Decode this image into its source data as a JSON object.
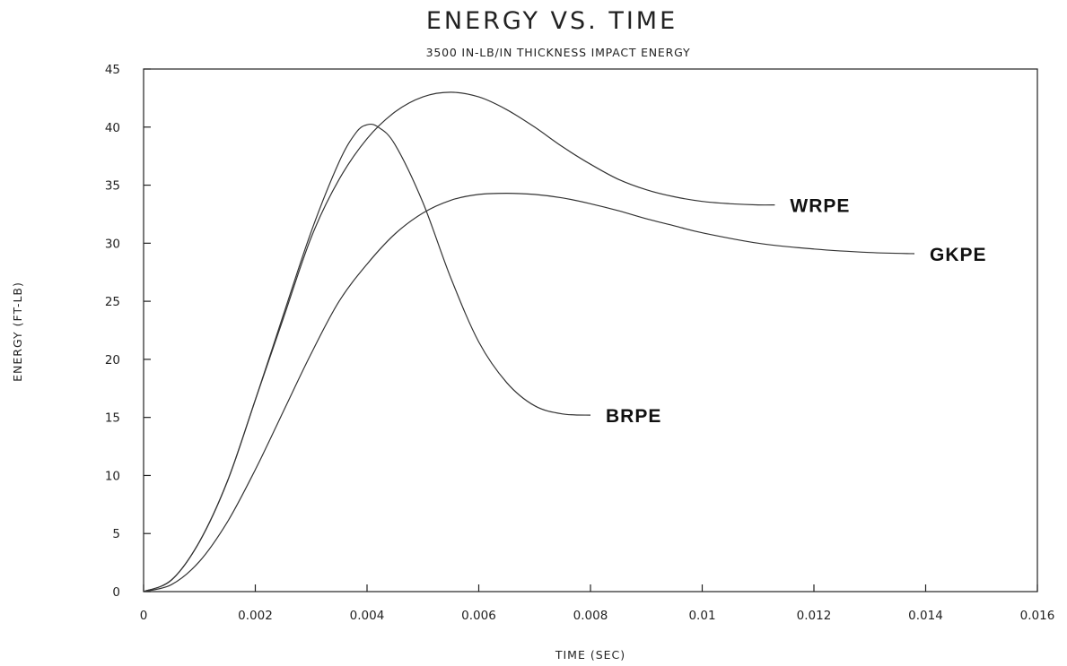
{
  "chart_data": {
    "type": "line",
    "title": "ENERGY VS. TIME",
    "subtitle": "3500 IN-LB/IN THICKNESS IMPACT ENERGY",
    "xlabel": "TIME (SEC)",
    "ylabel": "ENERGY (FT-LB)",
    "xlim": [
      0,
      0.016
    ],
    "ylim": [
      0,
      45
    ],
    "x_ticks": [
      0,
      0.002,
      0.004,
      0.006,
      0.008,
      0.01,
      0.012,
      0.014,
      0.016
    ],
    "x_tick_labels": [
      "0",
      "0.002",
      "0.004",
      "0.006",
      "0.008",
      "0.01",
      "0.012",
      "0.014",
      "0.016"
    ],
    "y_ticks": [
      0,
      5,
      10,
      15,
      20,
      25,
      30,
      35,
      40,
      45
    ],
    "y_tick_labels": [
      "0",
      "5",
      "10",
      "15",
      "20",
      "25",
      "30",
      "35",
      "40",
      "45"
    ],
    "grid": false,
    "series": [
      {
        "name": "BRPE",
        "x": [
          0,
          0.0005,
          0.001,
          0.0015,
          0.002,
          0.0025,
          0.003,
          0.0035,
          0.0038,
          0.004,
          0.0042,
          0.0045,
          0.005,
          0.0055,
          0.006,
          0.0065,
          0.007,
          0.0075,
          0.008
        ],
        "y": [
          0,
          1.0,
          4.3,
          9.5,
          16.5,
          23.8,
          31.0,
          37.0,
          39.5,
          40.2,
          40.0,
          38.5,
          33.5,
          27.0,
          21.5,
          18.0,
          16.0,
          15.3,
          15.2
        ]
      },
      {
        "name": "WRPE",
        "x": [
          0,
          0.0005,
          0.001,
          0.0015,
          0.002,
          0.0025,
          0.003,
          0.0035,
          0.004,
          0.0045,
          0.005,
          0.0055,
          0.006,
          0.0065,
          0.007,
          0.0075,
          0.008,
          0.0085,
          0.009,
          0.0095,
          0.01,
          0.0105,
          0.011,
          0.0113
        ],
        "y": [
          0,
          1.0,
          4.3,
          9.5,
          16.5,
          23.5,
          30.5,
          35.5,
          39.0,
          41.3,
          42.6,
          43.0,
          42.6,
          41.5,
          40.0,
          38.3,
          36.8,
          35.5,
          34.6,
          34.0,
          33.6,
          33.4,
          33.3,
          33.3
        ]
      },
      {
        "name": "GKPE",
        "x": [
          0,
          0.0005,
          0.001,
          0.0015,
          0.002,
          0.0025,
          0.003,
          0.0035,
          0.004,
          0.0045,
          0.005,
          0.0055,
          0.006,
          0.0065,
          0.007,
          0.0075,
          0.008,
          0.0085,
          0.009,
          0.0095,
          0.01,
          0.011,
          0.012,
          0.013,
          0.0138
        ],
        "y": [
          0,
          0.6,
          2.6,
          6.0,
          10.5,
          15.5,
          20.5,
          25.0,
          28.2,
          30.8,
          32.6,
          33.7,
          34.2,
          34.3,
          34.2,
          33.9,
          33.4,
          32.8,
          32.1,
          31.5,
          30.9,
          30.0,
          29.5,
          29.2,
          29.1
        ]
      }
    ]
  }
}
